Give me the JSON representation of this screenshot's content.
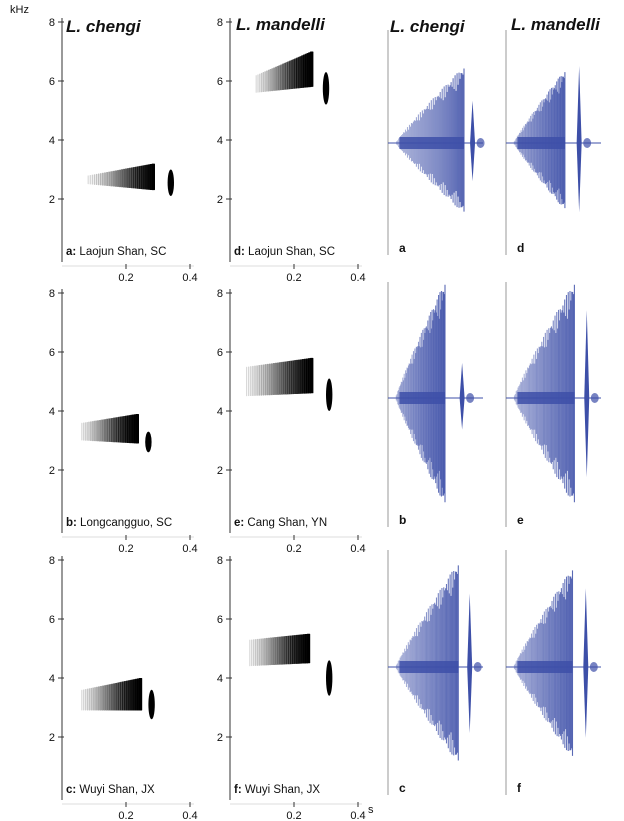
{
  "chart_data": {
    "type": "spectrogram-waveform-figure",
    "column_titles": [
      "L. chengi",
      "L. mandelli",
      "L. chengi",
      "L. mandelli"
    ],
    "y_unit": "kHz",
    "x_unit": "s",
    "spectrograms": {
      "xlim": [
        0,
        0.4
      ],
      "x_ticks": [
        0.2,
        0.4
      ],
      "x_tick_labels": [
        "0.2",
        "0.4"
      ],
      "ylim": [
        0,
        8
      ],
      "y_ticks": [
        2,
        4,
        6,
        8
      ],
      "y_tick_labels": [
        "2",
        "4",
        "6",
        "8"
      ],
      "panels": [
        {
          "letter": "a:",
          "location": "Laojun Shan, SC",
          "species": "L. chengi",
          "note_start": 0.08,
          "note_end": 0.28,
          "freq_low_start": 2.5,
          "freq_high_start": 2.8,
          "freq_low_end": 2.3,
          "freq_high_end": 3.2,
          "click_time": 0.34,
          "click_low": 2.1,
          "click_high": 3.0
        },
        {
          "letter": "d:",
          "location": "Laojun Shan, SC",
          "species": "L. mandelli",
          "note_start": 0.08,
          "note_end": 0.25,
          "freq_low_start": 5.6,
          "freq_high_start": 6.2,
          "freq_low_end": 5.8,
          "freq_high_end": 7.0,
          "click_time": 0.3,
          "click_low": 5.2,
          "click_high": 6.3
        },
        {
          "letter": "b:",
          "location": "Longcangguo, SC",
          "species": "L. chengi",
          "note_start": 0.06,
          "note_end": 0.23,
          "freq_low_start": 3.0,
          "freq_high_start": 3.6,
          "freq_low_end": 2.9,
          "freq_high_end": 3.9,
          "click_time": 0.27,
          "click_low": 2.6,
          "click_high": 3.3
        },
        {
          "letter": "e:",
          "location": "Cang Shan, YN",
          "species": "L. mandelli",
          "note_start": 0.05,
          "note_end": 0.25,
          "freq_low_start": 4.5,
          "freq_high_start": 5.5,
          "freq_low_end": 4.6,
          "freq_high_end": 5.8,
          "click_time": 0.31,
          "click_low": 4.0,
          "click_high": 5.1
        },
        {
          "letter": "c:",
          "location": "Wuyi Shan, JX",
          "species": "L. chengi",
          "note_start": 0.06,
          "note_end": 0.24,
          "freq_low_start": 2.9,
          "freq_high_start": 3.6,
          "freq_low_end": 2.9,
          "freq_high_end": 4.0,
          "click_time": 0.28,
          "click_low": 2.6,
          "click_high": 3.6
        },
        {
          "letter": "f:",
          "location": "Wuyi Shan, JX",
          "species": "L. mandelli",
          "note_start": 0.06,
          "note_end": 0.24,
          "freq_low_start": 4.4,
          "freq_high_start": 5.3,
          "freq_low_end": 4.5,
          "freq_high_end": 5.5,
          "click_time": 0.31,
          "click_low": 3.4,
          "click_high": 4.6
        }
      ]
    },
    "waveforms": {
      "color": "#3d4fa8",
      "panels": [
        {
          "letter": "a",
          "species": "L. chengi",
          "peak": 1.0,
          "main_end": 0.8,
          "click_pos": 0.89,
          "click_amp": 0.55
        },
        {
          "letter": "d",
          "species": "L. mandelli",
          "peak": 0.95,
          "main_end": 0.62,
          "click_pos": 0.77,
          "click_amp": 1.0
        },
        {
          "letter": "b",
          "species": "L. chengi",
          "peak": 1.0,
          "main_end": 0.6,
          "click_pos": 0.78,
          "click_amp": 0.3
        },
        {
          "letter": "e",
          "species": "L. mandelli",
          "peak": 1.0,
          "main_end": 0.72,
          "click_pos": 0.85,
          "click_amp": 0.75
        },
        {
          "letter": "c",
          "species": "L. chengi",
          "peak": 1.0,
          "main_end": 0.74,
          "click_pos": 0.86,
          "click_amp": 0.7
        },
        {
          "letter": "f",
          "species": "L. mandelli",
          "peak": 0.95,
          "main_end": 0.7,
          "click_pos": 0.84,
          "click_amp": 0.75
        }
      ]
    }
  }
}
